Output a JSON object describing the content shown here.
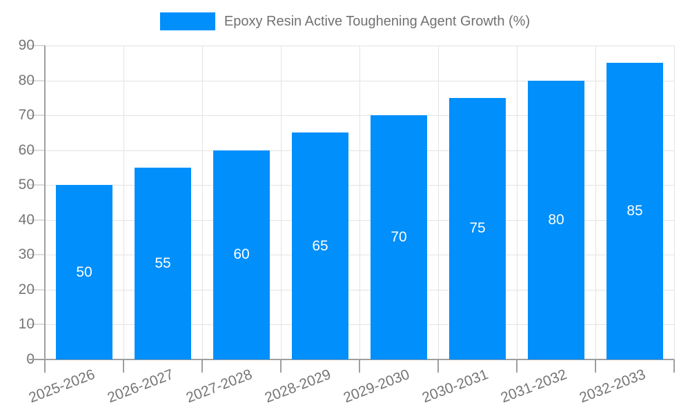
{
  "chart_data": {
    "type": "bar",
    "title": "Epoxy Resin Active Toughening Agent Growth (%)",
    "categories": [
      "2025-2026",
      "2026-2027",
      "2027-2028",
      "2028-2029",
      "2029-2030",
      "2030-2031",
      "2031-2032",
      "2032-2033"
    ],
    "values": [
      50,
      55,
      60,
      65,
      70,
      75,
      80,
      85
    ],
    "series": [
      {
        "name": "Epoxy Resin Active Toughening Agent Growth (%)",
        "values": [
          50,
          55,
          60,
          65,
          70,
          75,
          80,
          85
        ]
      }
    ],
    "xlabel": "",
    "ylabel": "",
    "ylim": [
      0,
      90
    ],
    "ytick_step": 10,
    "yticks": [
      0,
      10,
      20,
      30,
      40,
      50,
      60,
      70,
      80,
      90
    ],
    "grid": true,
    "legend_position": "top",
    "bar_label_color": "#ffffff",
    "bar_color": "#008FFB",
    "axis_text_color": "#757575",
    "axis_line_color": "#9e9e9e",
    "grid_color": "#e3e3e3",
    "background_color": "#ffffff"
  }
}
